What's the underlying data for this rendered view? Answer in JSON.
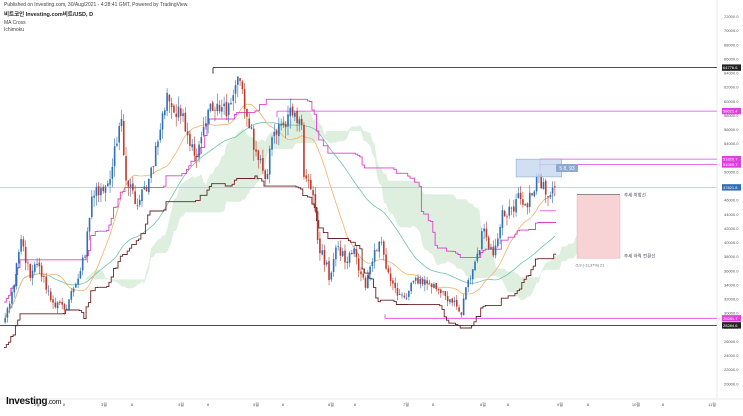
{
  "header": {
    "published": "Published on Investing.com, 30/Aug/2021 - 4:28:41 GMT, Powered by TradingView.",
    "symbol": "비트코인 Investing.com비트/USD, D",
    "indicator_1": "MA Cross",
    "indicator_2": "Ichimoku"
  },
  "branding": {
    "logo_text": "Investing",
    "logo_suffix": ".com"
  },
  "colors": {
    "up": "#2e6fb8",
    "down": "#c0392b",
    "ma_fast": "#f4b26b",
    "ma_slow": "#6fc2a8",
    "tenkan": "#e040c8",
    "kijun": "#6b2424",
    "cloud": "#d8ecd9",
    "level_line": "#111111",
    "magenta_level": "#e040e0",
    "badge_dark": "#222222",
    "badge_magenta": "#e040e0",
    "badge_blue": "#2e6fb8",
    "box_blue": "#c5d7f0",
    "box_red": "#f7d3d6"
  },
  "annotations": {
    "measure_label": "5 8, 93",
    "upper_label": "추세 저항선",
    "lower_label": "추세 하락 전환선",
    "lower_value": "-5,9 (-11,37%) 21"
  },
  "chart_data": {
    "type": "candlestick",
    "x_start": "2021-01-01",
    "x_end": "2021-08-30",
    "x_ticks": [
      "2월",
      "8",
      "3월",
      "8",
      "4월",
      "8",
      "5월",
      "8",
      "6월",
      "8",
      "7월",
      "8",
      "8월",
      "8",
      "9월",
      "8",
      "10월",
      "8",
      "11월"
    ],
    "y_range": [
      18000,
      73500
    ],
    "y_ticks": [
      20000.0,
      22000.0,
      24000.0,
      26000.0,
      28000.0,
      30000.0,
      32000.0,
      34000.0,
      36000.0,
      38000.0,
      40000.0,
      42000.0,
      44000.0,
      46000.0,
      48000.0,
      50000.0,
      52000.0,
      54000.0,
      56000.0,
      58000.0,
      60000.0,
      62000.0,
      64000.0,
      66000.0,
      68000.0,
      70000.0,
      72000.0
    ],
    "y_tick_labels": [
      "20000.0",
      "22000.0",
      "24000.0",
      "26000.0",
      "28000.0",
      "30000.0",
      "32000.0",
      "34000.0",
      "36000.0",
      "38000.0",
      "40000.0",
      "42000.0",
      "44000.0",
      "46000.0",
      "48000.0",
      "50000.0",
      "52000.0",
      "54000.0",
      "56000.0",
      "58000.0",
      "60000.0",
      "62000.0",
      "64000.0",
      "66000.0",
      "68000.0",
      "70000.0",
      "72000.0"
    ],
    "price_levels": [
      {
        "value": 64776.6,
        "label": "64776.6",
        "style": "dark"
      },
      {
        "value": 58621.4,
        "label": "58621.4",
        "style": "magenta"
      },
      {
        "value": 51820.7,
        "label": "51820.7",
        "style": "magenta"
      },
      {
        "value": 51060.7,
        "label": "51060.7",
        "style": "magenta"
      },
      {
        "value": 47821.8,
        "label": "47821.8",
        "style": "blue"
      },
      {
        "value": 29281.7,
        "label": "29281.7",
        "style": "magenta"
      },
      {
        "value": 28284.6,
        "label": "28284.6",
        "style": "dark"
      }
    ],
    "close_anchors": [
      [
        "2021-01-01",
        29300
      ],
      [
        "2021-01-05",
        34000
      ],
      [
        "2021-01-08",
        40500
      ],
      [
        "2021-01-12",
        35000
      ],
      [
        "2021-01-15",
        37000
      ],
      [
        "2021-01-22",
        31500
      ],
      [
        "2021-01-27",
        30500
      ],
      [
        "2021-01-31",
        33500
      ],
      [
        "2021-02-05",
        38000
      ],
      [
        "2021-02-08",
        46500
      ],
      [
        "2021-02-12",
        47800
      ],
      [
        "2021-02-16",
        49000
      ],
      [
        "2021-02-21",
        57500
      ],
      [
        "2021-02-23",
        48800
      ],
      [
        "2021-02-28",
        45200
      ],
      [
        "2021-03-05",
        49000
      ],
      [
        "2021-03-10",
        56000
      ],
      [
        "2021-03-13",
        61200
      ],
      [
        "2021-03-17",
        57800
      ],
      [
        "2021-03-20",
        58300
      ],
      [
        "2021-03-25",
        52300
      ],
      [
        "2021-03-31",
        58800
      ],
      [
        "2021-04-05",
        58600
      ],
      [
        "2021-04-10",
        59800
      ],
      [
        "2021-04-13",
        63500
      ],
      [
        "2021-04-14",
        62900
      ],
      [
        "2021-04-18",
        56200
      ],
      [
        "2021-04-22",
        51700
      ],
      [
        "2021-04-25",
        49000
      ],
      [
        "2021-04-28",
        54900
      ],
      [
        "2021-05-03",
        56600
      ],
      [
        "2021-05-08",
        58400
      ],
      [
        "2021-05-11",
        56700
      ],
      [
        "2021-05-12",
        49300
      ],
      [
        "2021-05-16",
        46700
      ],
      [
        "2021-05-19",
        38500
      ],
      [
        "2021-05-22",
        37200
      ],
      [
        "2021-05-23",
        34700
      ],
      [
        "2021-05-26",
        39300
      ],
      [
        "2021-05-31",
        37300
      ],
      [
        "2021-06-03",
        39200
      ],
      [
        "2021-06-08",
        33600
      ],
      [
        "2021-06-11",
        37300
      ],
      [
        "2021-06-15",
        40100
      ],
      [
        "2021-06-18",
        35800
      ],
      [
        "2021-06-22",
        32500
      ],
      [
        "2021-06-26",
        32200
      ],
      [
        "2021-06-30",
        35000
      ],
      [
        "2021-07-06",
        34200
      ],
      [
        "2021-07-12",
        33100
      ],
      [
        "2021-07-16",
        31500
      ],
      [
        "2021-07-20",
        29800
      ],
      [
        "2021-07-21",
        32100
      ],
      [
        "2021-07-26",
        37300
      ],
      [
        "2021-07-30",
        42000
      ],
      [
        "2021-08-03",
        38200
      ],
      [
        "2021-08-07",
        44600
      ],
      [
        "2021-08-12",
        44400
      ],
      [
        "2021-08-14",
        47000
      ],
      [
        "2021-08-18",
        45000
      ],
      [
        "2021-08-22",
        49300
      ],
      [
        "2021-08-26",
        46800
      ],
      [
        "2021-08-30",
        47821.8
      ]
    ]
  }
}
